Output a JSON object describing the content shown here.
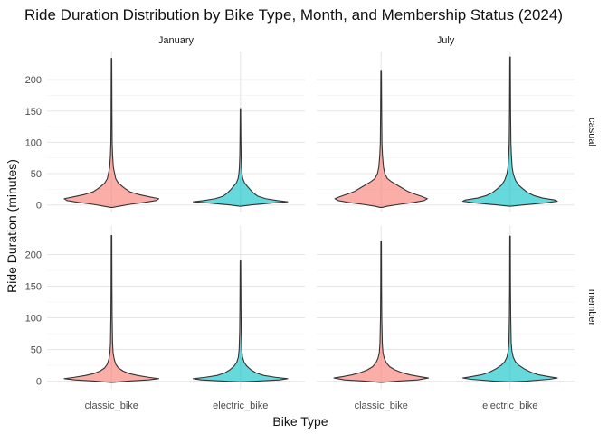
{
  "chart_data": {
    "type": "violin",
    "title": "Ride Duration Distribution by Bike Type, Month, and Membership Status (2024)",
    "xlabel": "Bike Type",
    "ylabel": "Ride Duration (minutes)",
    "categories": [
      "classic_bike",
      "electric_bike"
    ],
    "column_facets": [
      "January",
      "July"
    ],
    "row_facets": [
      "casual",
      "member"
    ],
    "yticks": [
      0,
      50,
      100,
      150,
      200
    ],
    "ylim": [
      -12,
      245
    ],
    "grid": true,
    "legend": "none",
    "colors": {
      "classic_bike": "#F8766D",
      "electric_bike": "#00BFC4",
      "outline": "#333333"
    },
    "panels": [
      {
        "month": "January",
        "membership": "casual",
        "violins": [
          {
            "bike": "classic_bike",
            "min": -4,
            "max": 234,
            "profile": [
              [
                -4,
                0.02
              ],
              [
                -2,
                0.15
              ],
              [
                1,
                0.35
              ],
              [
                4,
                0.62
              ],
              [
                7,
                0.85
              ],
              [
                10,
                0.9
              ],
              [
                13,
                0.72
              ],
              [
                17,
                0.5
              ],
              [
                21,
                0.35
              ],
              [
                26,
                0.26
              ],
              [
                30,
                0.2
              ],
              [
                35,
                0.13
              ],
              [
                42,
                0.08
              ],
              [
                50,
                0.06
              ],
              [
                60,
                0.035
              ],
              [
                80,
                0.02
              ],
              [
                100,
                0.012
              ],
              [
                150,
                0.008
              ],
              [
                200,
                0.006
              ],
              [
                234,
                0.004
              ]
            ]
          },
          {
            "bike": "electric_bike",
            "min": -2,
            "max": 154,
            "profile": [
              [
                -2,
                0.02
              ],
              [
                0,
                0.2
              ],
              [
                3,
                0.6
              ],
              [
                5,
                0.9
              ],
              [
                7,
                0.7
              ],
              [
                10,
                0.48
              ],
              [
                14,
                0.33
              ],
              [
                19,
                0.25
              ],
              [
                24,
                0.19
              ],
              [
                29,
                0.14
              ],
              [
                35,
                0.08
              ],
              [
                42,
                0.045
              ],
              [
                50,
                0.03
              ],
              [
                60,
                0.02
              ],
              [
                80,
                0.012
              ],
              [
                110,
                0.008
              ],
              [
                154,
                0.004
              ]
            ]
          }
        ]
      },
      {
        "month": "July",
        "membership": "casual",
        "violins": [
          {
            "bike": "classic_bike",
            "min": -4,
            "max": 215,
            "profile": [
              [
                -4,
                0.02
              ],
              [
                -2,
                0.12
              ],
              [
                1,
                0.35
              ],
              [
                4,
                0.62
              ],
              [
                7,
                0.82
              ],
              [
                10,
                0.88
              ],
              [
                14,
                0.76
              ],
              [
                18,
                0.62
              ],
              [
                22,
                0.5
              ],
              [
                27,
                0.4
              ],
              [
                32,
                0.3
              ],
              [
                37,
                0.2
              ],
              [
                42,
                0.12
              ],
              [
                50,
                0.07
              ],
              [
                60,
                0.045
              ],
              [
                80,
                0.025
              ],
              [
                100,
                0.015
              ],
              [
                150,
                0.01
              ],
              [
                215,
                0.005
              ]
            ]
          },
          {
            "bike": "electric_bike",
            "min": -2,
            "max": 236,
            "profile": [
              [
                -2,
                0.02
              ],
              [
                0,
                0.25
              ],
              [
                3,
                0.65
              ],
              [
                6,
                0.9
              ],
              [
                8,
                0.85
              ],
              [
                11,
                0.62
              ],
              [
                15,
                0.45
              ],
              [
                20,
                0.33
              ],
              [
                26,
                0.24
              ],
              [
                32,
                0.16
              ],
              [
                40,
                0.1
              ],
              [
                50,
                0.06
              ],
              [
                60,
                0.04
              ],
              [
                80,
                0.025
              ],
              [
                100,
                0.016
              ],
              [
                150,
                0.01
              ],
              [
                236,
                0.005
              ]
            ]
          }
        ]
      },
      {
        "month": "January",
        "membership": "member",
        "violins": [
          {
            "bike": "classic_bike",
            "min": -2,
            "max": 230,
            "profile": [
              [
                -2,
                0.02
              ],
              [
                0,
                0.3
              ],
              [
                2,
                0.7
              ],
              [
                4,
                0.9
              ],
              [
                6,
                0.72
              ],
              [
                9,
                0.5
              ],
              [
                12,
                0.34
              ],
              [
                16,
                0.22
              ],
              [
                21,
                0.13
              ],
              [
                27,
                0.08
              ],
              [
                35,
                0.05
              ],
              [
                45,
                0.03
              ],
              [
                60,
                0.02
              ],
              [
                100,
                0.012
              ],
              [
                150,
                0.008
              ],
              [
                230,
                0.005
              ]
            ]
          },
          {
            "bike": "electric_bike",
            "min": -1,
            "max": 190,
            "profile": [
              [
                -1,
                0.02
              ],
              [
                0,
                0.3
              ],
              [
                2,
                0.75
              ],
              [
                4,
                0.9
              ],
              [
                6,
                0.68
              ],
              [
                9,
                0.45
              ],
              [
                13,
                0.3
              ],
              [
                18,
                0.2
              ],
              [
                24,
                0.12
              ],
              [
                30,
                0.07
              ],
              [
                38,
                0.04
              ],
              [
                50,
                0.025
              ],
              [
                80,
                0.014
              ],
              [
                120,
                0.01
              ],
              [
                190,
                0.005
              ]
            ]
          }
        ]
      },
      {
        "month": "July",
        "membership": "member",
        "violins": [
          {
            "bike": "classic_bike",
            "min": -2,
            "max": 221,
            "profile": [
              [
                -2,
                0.02
              ],
              [
                0,
                0.3
              ],
              [
                2,
                0.7
              ],
              [
                5,
                0.9
              ],
              [
                7,
                0.75
              ],
              [
                10,
                0.55
              ],
              [
                14,
                0.38
              ],
              [
                18,
                0.26
              ],
              [
                23,
                0.16
              ],
              [
                29,
                0.1
              ],
              [
                36,
                0.06
              ],
              [
                45,
                0.035
              ],
              [
                60,
                0.022
              ],
              [
                100,
                0.012
              ],
              [
                150,
                0.008
              ],
              [
                221,
                0.005
              ]
            ]
          },
          {
            "bike": "electric_bike",
            "min": -1,
            "max": 229,
            "profile": [
              [
                -1,
                0.02
              ],
              [
                0,
                0.3
              ],
              [
                3,
                0.75
              ],
              [
                5,
                0.9
              ],
              [
                7,
                0.75
              ],
              [
                10,
                0.55
              ],
              [
                14,
                0.4
              ],
              [
                19,
                0.28
              ],
              [
                25,
                0.17
              ],
              [
                31,
                0.1
              ],
              [
                38,
                0.06
              ],
              [
                48,
                0.035
              ],
              [
                60,
                0.022
              ],
              [
                100,
                0.013
              ],
              [
                150,
                0.008
              ],
              [
                229,
                0.005
              ]
            ]
          }
        ]
      }
    ]
  }
}
